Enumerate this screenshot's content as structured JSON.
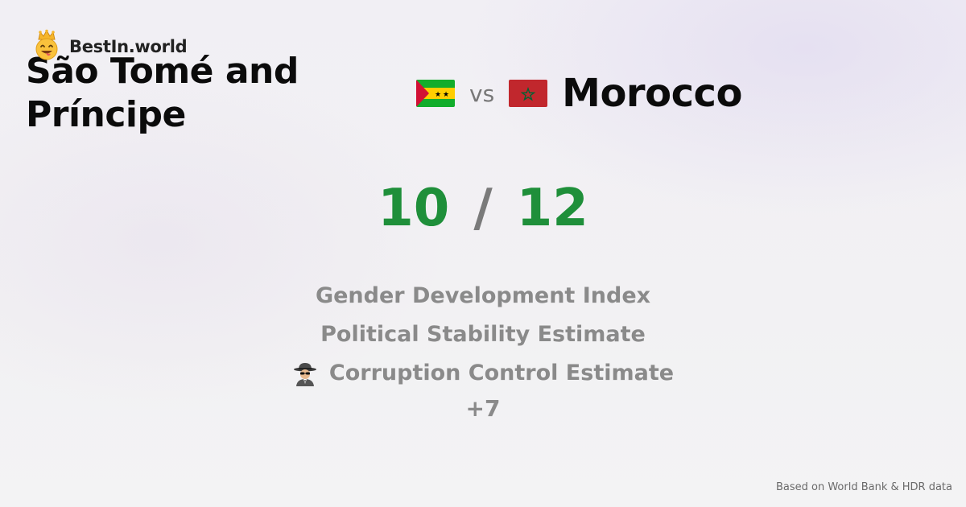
{
  "brand": {
    "name": "BestIn.world",
    "icon": "crowned-smiley-icon"
  },
  "comparison": {
    "left_country": "São Tomé and Príncipe",
    "right_country": "Morocco",
    "vs_label": "vs",
    "left_flag": "sao-tome-and-principe-flag-icon",
    "right_flag": "morocco-flag-icon"
  },
  "scores": {
    "left": "10",
    "separator": "/",
    "right": "12"
  },
  "metrics": [
    {
      "label": "Gender Development Index",
      "icon": ""
    },
    {
      "label": "Political Stability Estimate",
      "icon": ""
    },
    {
      "label": "Corruption Control Estimate",
      "icon": "spy-icon"
    }
  ],
  "more_label": "+7",
  "footer": {
    "source": "Based on World Bank & HDR data"
  },
  "colors": {
    "score_green": "#1f8f3a",
    "metric_gray": "#8a8a8a",
    "title_black": "#0b0b0b"
  }
}
